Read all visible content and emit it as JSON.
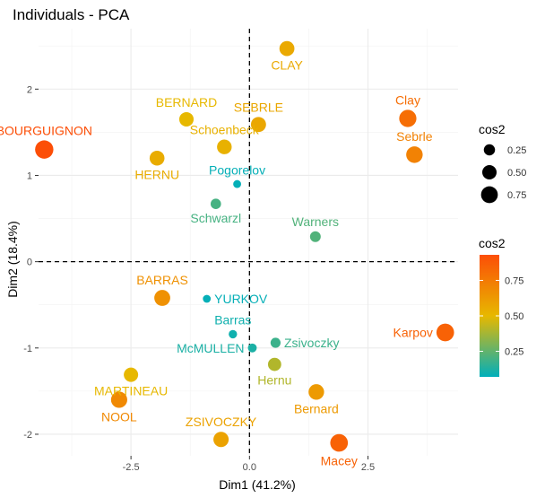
{
  "chart_data": {
    "type": "scatter",
    "title": "Individuals - PCA",
    "xlabel": "Dim1 (41.2%)",
    "ylabel": "Dim2 (18.4%)",
    "xlim": [
      -4.45,
      4.4
    ],
    "ylim": [
      -2.25,
      2.7
    ],
    "xticks": [
      -2.5,
      0.0,
      2.5
    ],
    "xtick_labels": [
      "-2.5",
      "0.0",
      "2.5"
    ],
    "yticks": [
      -2,
      -1,
      0,
      1,
      2
    ],
    "ytick_labels": [
      "-2",
      "-1",
      "0",
      "1",
      "2"
    ],
    "grid": true,
    "reference_lines": {
      "x": 0,
      "y": 0,
      "style": "dashed"
    },
    "legend_size": {
      "title": "cos2",
      "values": [
        0.25,
        0.5,
        0.75
      ],
      "labels": [
        "0.25",
        "0.50",
        "0.75"
      ]
    },
    "legend_color": {
      "title": "cos2",
      "labels": [
        "0.25",
        "0.50",
        "0.75"
      ],
      "label_values": [
        0.25,
        0.5,
        0.75
      ],
      "range": [
        0.07,
        0.93
      ],
      "gradient": [
        "#00AFBB",
        "#E7B800",
        "#FC4E07"
      ]
    },
    "points": [
      {
        "label": "SEBRLE",
        "x": 0.19,
        "y": 1.59,
        "cos2": 0.57,
        "lpos": "top"
      },
      {
        "label": "CLAY",
        "x": 0.79,
        "y": 2.47,
        "cos2": 0.56,
        "lpos": "bottom"
      },
      {
        "label": "BERNARD",
        "x": -1.33,
        "y": 1.65,
        "cos2": 0.5,
        "lpos": "top"
      },
      {
        "label": "YURKOV",
        "x": -0.9,
        "y": -0.43,
        "cos2": 0.08,
        "lpos": "right"
      },
      {
        "label": "ZSIVOCZKY",
        "x": -0.6,
        "y": -2.06,
        "cos2": 0.59,
        "lpos": "top"
      },
      {
        "label": "McMULLEN",
        "x": 0.06,
        "y": -1.0,
        "cos2": 0.12,
        "lpos": "left"
      },
      {
        "label": "MARTINEAU",
        "x": -2.5,
        "y": -1.31,
        "cos2": 0.5,
        "lpos": "bottom"
      },
      {
        "label": "HERNU",
        "x": -1.95,
        "y": 1.2,
        "cos2": 0.55,
        "lpos": "bottom"
      },
      {
        "label": "BARRAS",
        "x": -1.84,
        "y": -0.42,
        "cos2": 0.66,
        "lpos": "top"
      },
      {
        "label": "NOOL",
        "x": -2.75,
        "y": -1.6,
        "cos2": 0.69,
        "lpos": "bottom"
      },
      {
        "label": "BOURGUIGNON",
        "x": -4.33,
        "y": 1.3,
        "cos2": 0.93,
        "lpos": "top"
      },
      {
        "label": "Sebrle",
        "x": 3.48,
        "y": 1.24,
        "cos2": 0.72,
        "lpos": "top"
      },
      {
        "label": "Clay",
        "x": 3.34,
        "y": 1.66,
        "cos2": 0.8,
        "lpos": "top"
      },
      {
        "label": "Karpov",
        "x": 4.13,
        "y": -0.82,
        "cos2": 0.85,
        "lpos": "left"
      },
      {
        "label": "Macey",
        "x": 1.89,
        "y": -2.1,
        "cos2": 0.85,
        "lpos": "bottom"
      },
      {
        "label": "Warners",
        "x": 1.39,
        "y": 0.29,
        "cos2": 0.22,
        "lpos": "top"
      },
      {
        "label": "Zsivoczky",
        "x": 0.55,
        "y": -0.94,
        "cos2": 0.18,
        "lpos": "right"
      },
      {
        "label": "Hernu",
        "x": 0.53,
        "y": -1.19,
        "cos2": 0.4,
        "lpos": "bottom"
      },
      {
        "label": "Bernard",
        "x": 1.41,
        "y": -1.51,
        "cos2": 0.62,
        "lpos": "bottom"
      },
      {
        "label": "Schwarzl",
        "x": -0.71,
        "y": 0.67,
        "cos2": 0.2,
        "lpos": "bottom"
      },
      {
        "label": "Pogorelov",
        "x": -0.26,
        "y": 0.9,
        "cos2": 0.08,
        "lpos": "top"
      },
      {
        "label": "Schoenbeck",
        "x": -0.53,
        "y": 1.33,
        "cos2": 0.53,
        "lpos": "top"
      },
      {
        "label": "Barras",
        "x": -0.35,
        "y": -0.84,
        "cos2": 0.1,
        "lpos": "top"
      }
    ]
  }
}
